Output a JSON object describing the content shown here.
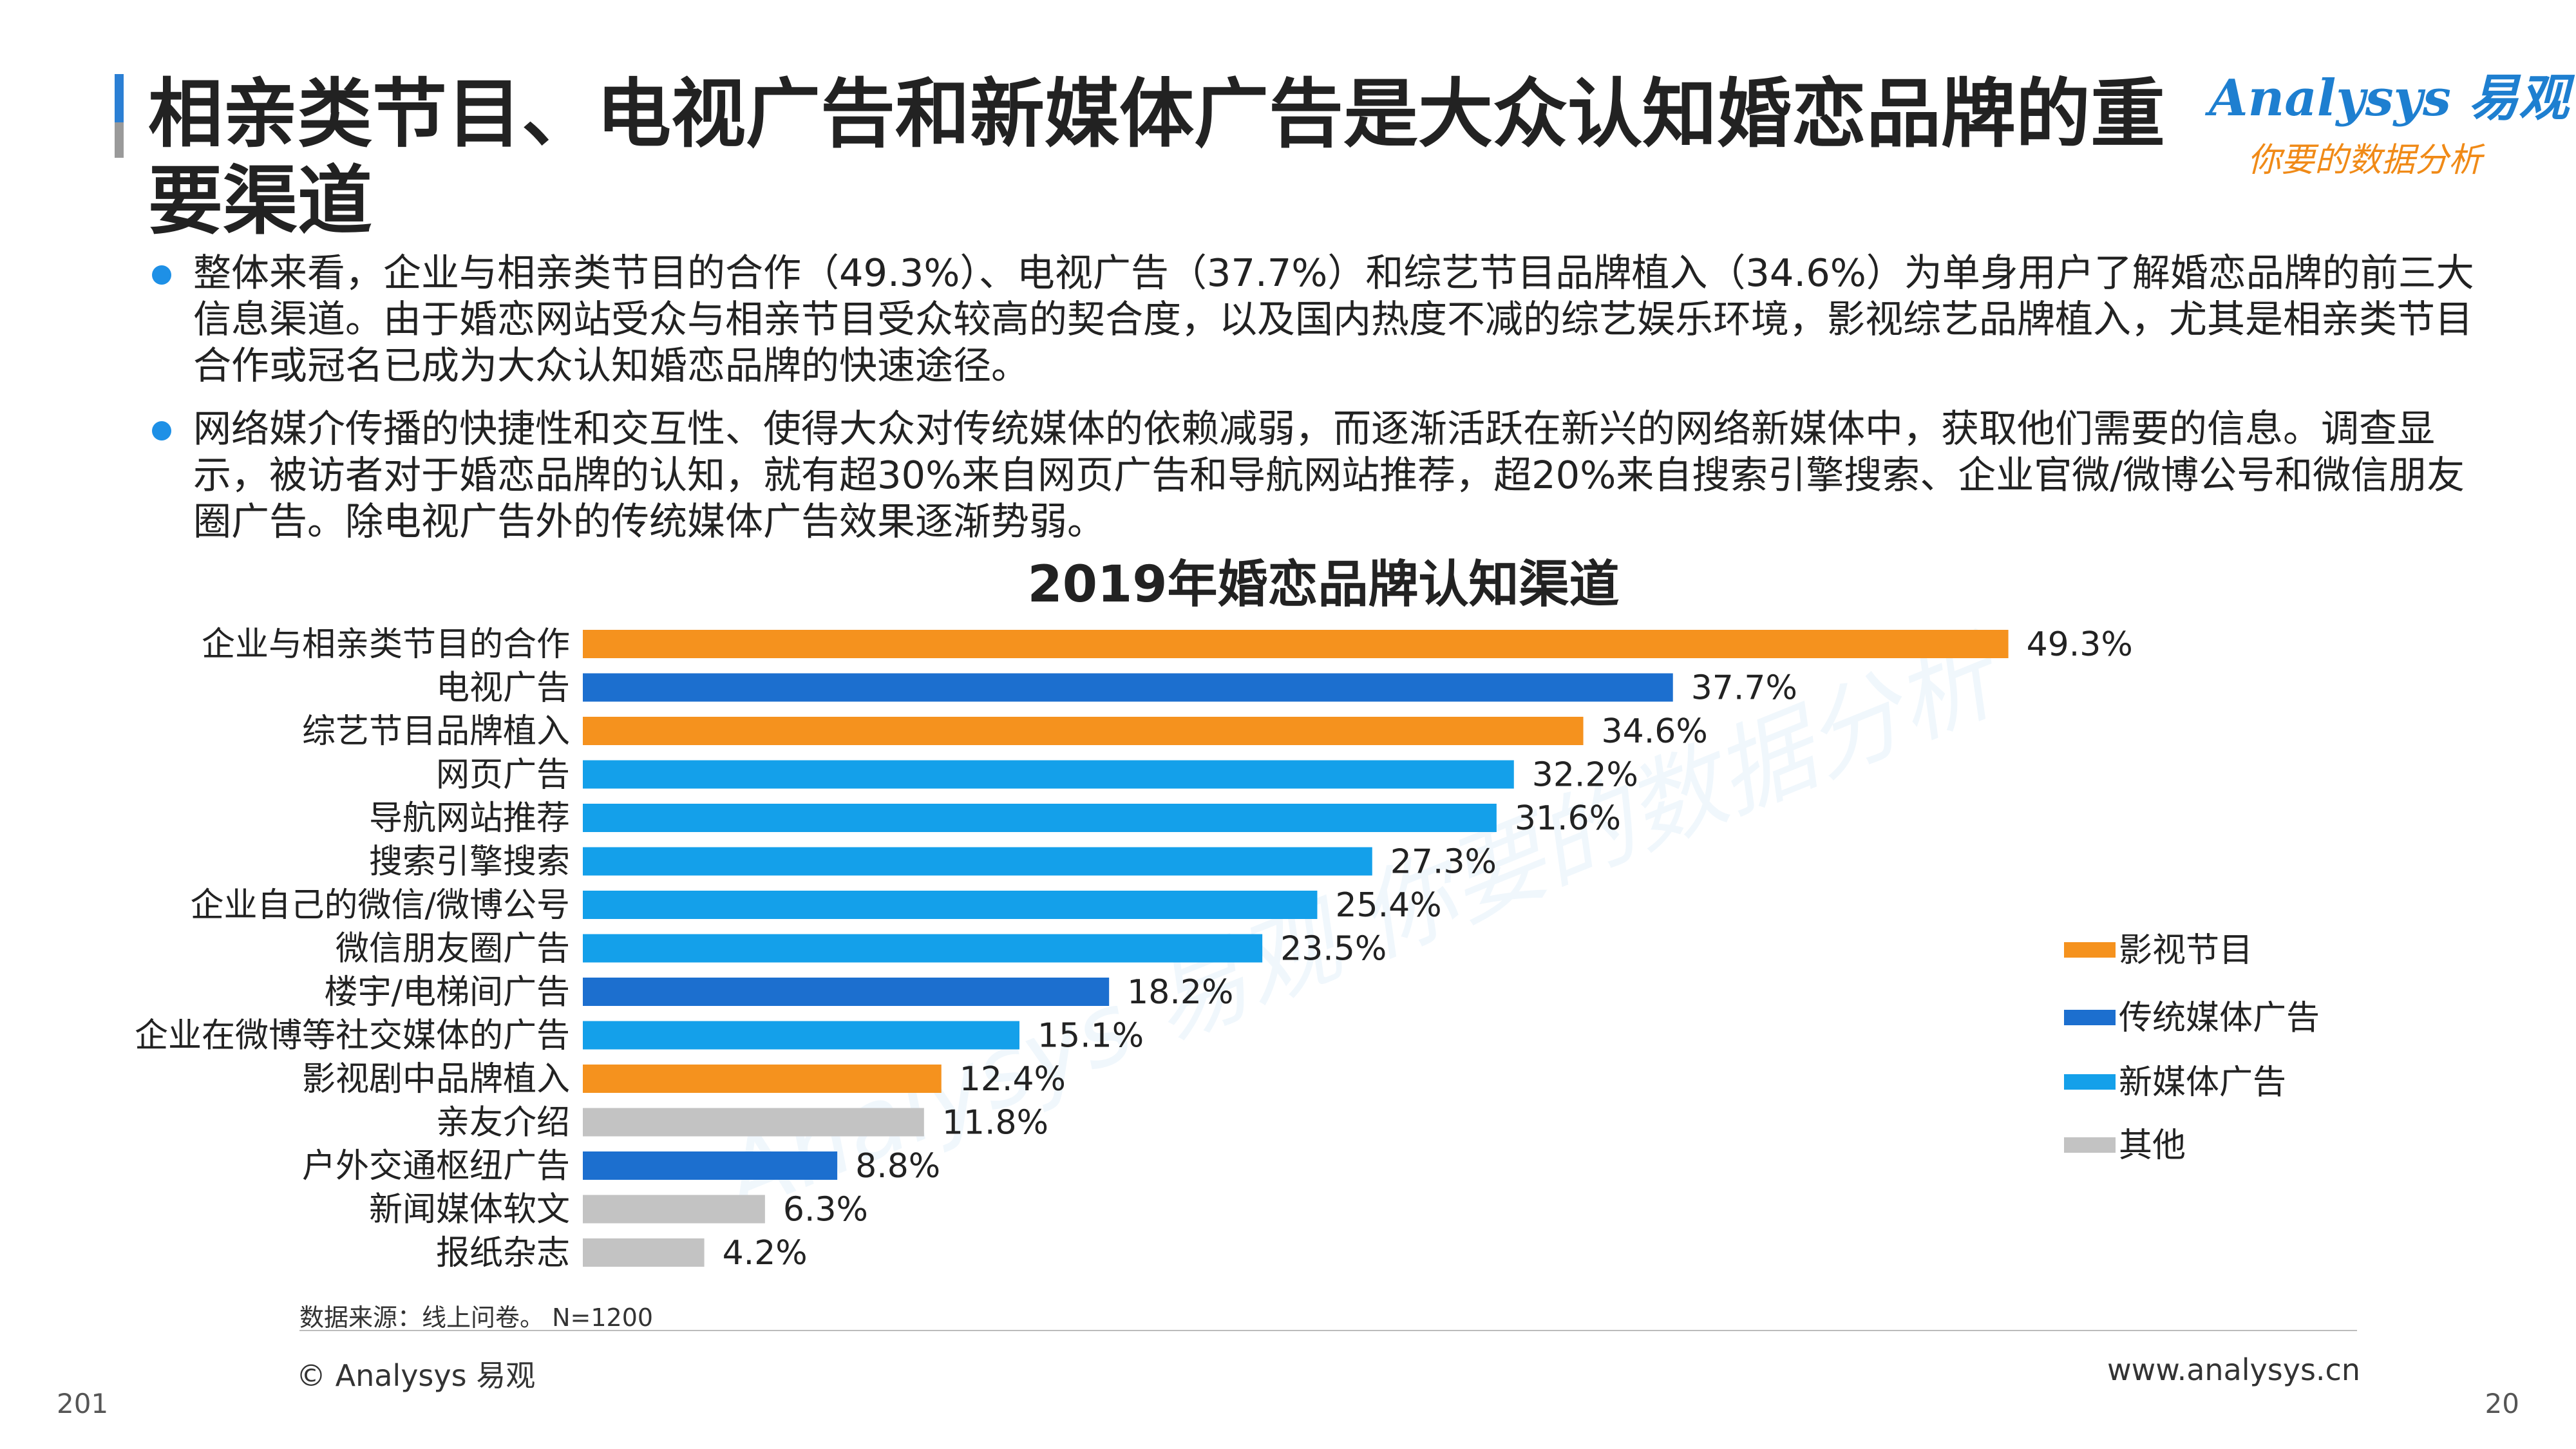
{
  "title": "相亲类节目、电视广告和新媒体广告是大众认知婚恋品牌的重要渠道",
  "logo": {
    "brand": "Analysys 易观",
    "tagline": "你要的数据分析"
  },
  "bullets": [
    "整体来看，企业与相亲类节目的合作（49.3%）、电视广告（37.7%）和综艺节目品牌植入（34.6%）为单身用户了解婚恋品牌的前三大信息渠道。由于婚恋网站受众与相亲节目受众较高的契合度，以及国内热度不减的综艺娱乐环境，影视综艺品牌植入，尤其是相亲类节目合作或冠名已成为大众认知婚恋品牌的快速途径。",
    "网络媒介传播的快捷性和交互性、使得大众对传统媒体的依赖减弱，而逐渐活跃在新兴的网络新媒体中，获取他们需要的信息。调查显示，被访者对于婚恋品牌的认知，就有超30%来自网页广告和导航网站推荐，超20%来自搜索引擎搜索、企业官微/微博公号和微信朋友圈广告。除电视广告外的传统媒体广告效果逐渐势弱。"
  ],
  "chart_data": {
    "type": "bar",
    "orientation": "horizontal",
    "title": "2019年婚恋品牌认知渠道",
    "categories": [
      "企业与相亲类节目的合作",
      "电视广告",
      "综艺节目品牌植入",
      "网页广告",
      "导航网站推荐",
      "搜索引擎搜索",
      "企业自己的微信/微博公号",
      "微信朋友圈广告",
      "楼宇/电梯间广告",
      "企业在微博等社交媒体的广告",
      "影视剧中品牌植入",
      "亲友介绍",
      "户外交通枢纽广告",
      "新闻媒体软文",
      "报纸杂志"
    ],
    "values": [
      49.3,
      37.7,
      34.6,
      32.2,
      31.6,
      27.3,
      25.4,
      23.5,
      18.2,
      15.1,
      12.4,
      11.8,
      8.8,
      6.3,
      4.2
    ],
    "value_labels": [
      "49.3%",
      "37.7%",
      "34.6%",
      "32.2%",
      "31.6%",
      "27.3%",
      "25.4%",
      "23.5%",
      "18.2%",
      "15.1%",
      "12.4%",
      "11.8%",
      "8.8%",
      "6.3%",
      "4.2%"
    ],
    "groups": [
      "影视节目",
      "传统媒体广告",
      "影视节目",
      "新媒体广告",
      "新媒体广告",
      "新媒体广告",
      "新媒体广告",
      "新媒体广告",
      "传统媒体广告",
      "新媒体广告",
      "影视节目",
      "其他",
      "传统媒体广告",
      "其他",
      "其他"
    ],
    "legend": [
      {
        "name": "影视节目",
        "color": "#f5921e"
      },
      {
        "name": "传统媒体广告",
        "color": "#1c6fcf"
      },
      {
        "name": "新媒体广告",
        "color": "#14a0ea"
      },
      {
        "name": "其他",
        "color": "#c3c3c3"
      }
    ],
    "legend_position": "right",
    "xlim": [
      0,
      50
    ],
    "grid": false
  },
  "source": "数据来源：线上问卷。 N=1200",
  "copyright": "© Analysys 易观",
  "website": "www.analysys.cn",
  "page_left": "201",
  "page_right": "20",
  "watermark": "Analysys 易观 你要的数据分析"
}
